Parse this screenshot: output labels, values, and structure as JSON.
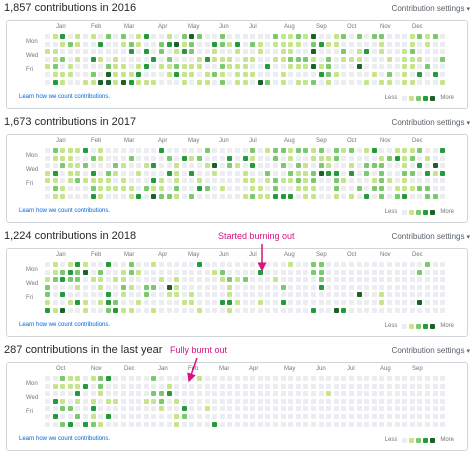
{
  "colors": {
    "l0": "#ebedf0",
    "l1": "#c6e48b",
    "l2": "#7bc96f",
    "l3": "#239a3b",
    "l4": "#196127",
    "annotation": "#d6137f",
    "link": "#0366d6"
  },
  "common": {
    "settings_label": "Contribution settings",
    "learn_label": "Learn how we count contributions.",
    "legend_less": "Less",
    "legend_more": "More",
    "day_labels": [
      "Mon",
      "Wed",
      "Fri"
    ]
  },
  "panels": [
    {
      "title": "1,857 contributions in 2016",
      "months": [
        "Jan",
        "Feb",
        "Mar",
        "Apr",
        "May",
        "Jun",
        "Jul",
        "Aug",
        "Sep",
        "Oct",
        "Nov",
        "Dec"
      ],
      "activity": [
        0.45,
        0.5,
        0.55,
        0.55,
        0.5,
        0.45,
        0.5,
        0.45,
        0.45,
        0.45,
        0.45,
        0.5,
        0.55,
        0.55,
        0.55,
        0.6,
        0.55,
        0.5,
        0.5,
        0.45,
        0.5,
        0.55,
        0.6,
        0.6,
        0.55,
        0.5,
        0.5,
        0.5,
        0.55,
        0.55,
        0.55,
        0.6,
        0.6,
        0.55,
        0.5,
        0.5,
        0.5,
        0.55,
        0.55,
        0.55,
        0.5,
        0.5,
        0.5,
        0.5,
        0.55,
        0.55,
        0.5,
        0.45,
        0.45,
        0.4,
        0.4,
        0.35,
        0.3
      ]
    },
    {
      "title": "1,673 contributions in 2017",
      "months": [
        "Jan",
        "Feb",
        "Mar",
        "Apr",
        "May",
        "Jun",
        "Jul",
        "Aug",
        "Sep",
        "Oct",
        "Nov",
        "Dec"
      ],
      "activity": [
        0.5,
        0.5,
        0.55,
        0.55,
        0.55,
        0.5,
        0.5,
        0.5,
        0.55,
        0.55,
        0.55,
        0.5,
        0.5,
        0.5,
        0.55,
        0.5,
        0.5,
        0.5,
        0.5,
        0.5,
        0.45,
        0.4,
        0.35,
        0.3,
        0.3,
        0.4,
        0.5,
        0.55,
        0.55,
        0.55,
        0.5,
        0.5,
        0.55,
        0.6,
        0.6,
        0.55,
        0.55,
        0.5,
        0.55,
        0.6,
        0.6,
        0.55,
        0.5,
        0.5,
        0.5,
        0.5,
        0.55,
        0.55,
        0.5,
        0.45,
        0.45,
        0.4,
        0.4
      ]
    },
    {
      "title": "1,224 contributions in 2018",
      "months": [
        "Jan",
        "Feb",
        "Mar",
        "Apr",
        "May",
        "Jun",
        "Jul",
        "Aug",
        "Sep",
        "Oct",
        "Nov",
        "Dec"
      ],
      "activity": [
        0.55,
        0.55,
        0.5,
        0.55,
        0.5,
        0.5,
        0.5,
        0.45,
        0.45,
        0.45,
        0.45,
        0.4,
        0.4,
        0.4,
        0.4,
        0.35,
        0.35,
        0.35,
        0.3,
        0.3,
        0.3,
        0.25,
        0.25,
        0.25,
        0.25,
        0.25,
        0.2,
        0.2,
        0.2,
        0.2,
        0.2,
        0.2,
        0.15,
        0.15,
        0.15,
        0.15,
        0.15,
        0.12,
        0.12,
        0.12,
        0.12,
        0.12,
        0.1,
        0.1,
        0.1,
        0.1,
        0.08,
        0.08,
        0.08,
        0.08,
        0.06,
        0.06,
        0.06
      ]
    },
    {
      "title": "287 contributions in the last year",
      "months": [
        "Oct",
        "Nov",
        "Dec",
        "Jan",
        "Feb",
        "Mar",
        "Apr",
        "May",
        "Jun",
        "Jul",
        "Aug",
        "Sep"
      ],
      "activity": [
        0.4,
        0.45,
        0.45,
        0.4,
        0.4,
        0.35,
        0.35,
        0.3,
        0.3,
        0.3,
        0.25,
        0.2,
        0.2,
        0.25,
        0.25,
        0.3,
        0.25,
        0.2,
        0.2,
        0.2,
        0.15,
        0.1,
        0.05,
        0.03,
        0.02,
        0.02,
        0.02,
        0.02,
        0.02,
        0.02,
        0.02,
        0.02,
        0.02,
        0.02,
        0.02,
        0.02,
        0.02,
        0.02,
        0.02,
        0.02,
        0.02,
        0.02,
        0.02,
        0.02,
        0.02,
        0.02,
        0.02,
        0.02,
        0.02,
        0.02,
        0.02,
        0.02,
        0.02
      ]
    }
  ],
  "annotations": [
    {
      "text": "Started burning out"
    },
    {
      "text": "Fully burnt out"
    }
  ]
}
